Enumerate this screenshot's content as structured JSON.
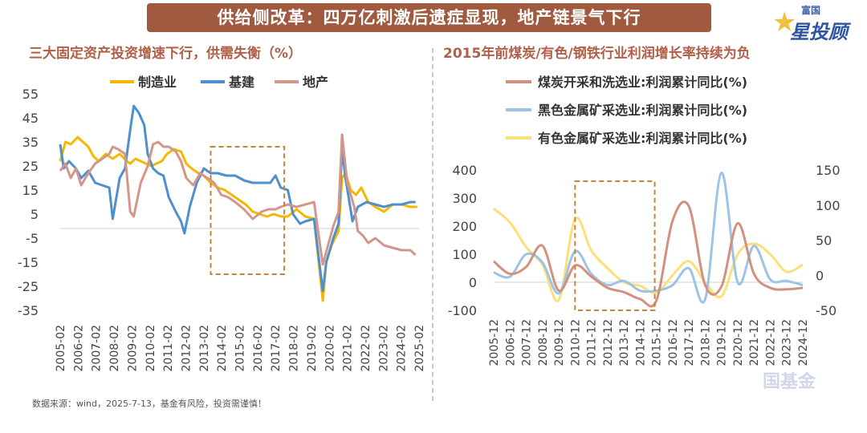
{
  "banner": {
    "title": "供给侧改革：四万亿刺激后遗症显现，地产链景气下行"
  },
  "logo": {
    "top": "富国",
    "main": "星投顾"
  },
  "watermark": "国基金",
  "footer": {
    "text": "数据来源：wind，2025-7-13，基金有风险，投资需谨慎！"
  },
  "colors": {
    "manufacturing": "#f5b800",
    "infrastructure": "#4f8fcc",
    "realestate": "#d4958a",
    "coal": "#d4907f",
    "ferrous": "#9ec3e4",
    "nonferrous": "#fbe07a",
    "highlight": "#c8823c"
  },
  "chart_data": [
    {
      "type": "line",
      "title": "三大固定资产投资增速下行，供需失衡（%）",
      "y_ticks": [
        "55",
        "45",
        "35",
        "25",
        "15",
        "5",
        "-5",
        "-15",
        "-25",
        "-35"
      ],
      "ylim": [
        -35,
        55
      ],
      "x_ticks": [
        "2005-02",
        "2006-02",
        "2007-02",
        "2008-02",
        "2009-02",
        "2010-02",
        "2011-02",
        "2012-02",
        "2013-02",
        "2014-02",
        "2015-02",
        "2016-02",
        "2017-02",
        "2018-02",
        "2019-02",
        "2020-02",
        "2021-02",
        "2022-02",
        "2023-02",
        "2024-02",
        "2025-02"
      ],
      "xlim": [
        2005.0,
        2025.5
      ],
      "highlight_box": {
        "x": [
          2013.6,
          2017.8
        ],
        "y": [
          -20,
          33
        ]
      },
      "series": [
        {
          "name": "制造业",
          "color_key": "manufacturing",
          "points": [
            [
              2005.0,
              27
            ],
            [
              2005.3,
              35
            ],
            [
              2005.6,
              34
            ],
            [
              2006.0,
              37
            ],
            [
              2006.3,
              35
            ],
            [
              2006.6,
              33
            ],
            [
              2006.9,
              29
            ],
            [
              2007.2,
              27
            ],
            [
              2007.6,
              30
            ],
            [
              2008.0,
              28
            ],
            [
              2008.4,
              30
            ],
            [
              2008.8,
              27
            ],
            [
              2009.0,
              26
            ],
            [
              2009.3,
              28
            ],
            [
              2009.6,
              27
            ],
            [
              2009.9,
              26
            ],
            [
              2010.2,
              25
            ],
            [
              2010.5,
              26
            ],
            [
              2010.8,
              27
            ],
            [
              2011.1,
              30
            ],
            [
              2011.5,
              32
            ],
            [
              2011.9,
              31
            ],
            [
              2012.2,
              26
            ],
            [
              2012.5,
              24
            ],
            [
              2012.9,
              22
            ],
            [
              2013.2,
              21
            ],
            [
              2013.6,
              18
            ],
            [
              2014.0,
              16
            ],
            [
              2014.4,
              15
            ],
            [
              2014.8,
              13
            ],
            [
              2015.2,
              11
            ],
            [
              2015.6,
              9
            ],
            [
              2016.0,
              6
            ],
            [
              2016.4,
              5
            ],
            [
              2016.8,
              4
            ],
            [
              2017.2,
              5
            ],
            [
              2017.6,
              4
            ],
            [
              2018.0,
              4
            ],
            [
              2018.5,
              7
            ],
            [
              2019.0,
              4
            ],
            [
              2019.5,
              3
            ],
            [
              2020.0,
              -31
            ],
            [
              2020.2,
              -15
            ],
            [
              2020.5,
              -8
            ],
            [
              2020.9,
              -2
            ],
            [
              2021.1,
              20
            ],
            [
              2021.3,
              22
            ],
            [
              2021.6,
              15
            ],
            [
              2021.9,
              13
            ],
            [
              2022.2,
              16
            ],
            [
              2022.6,
              10
            ],
            [
              2023.0,
              8
            ],
            [
              2023.5,
              6
            ],
            [
              2024.0,
              9
            ],
            [
              2024.5,
              9
            ],
            [
              2025.0,
              8
            ],
            [
              2025.4,
              8
            ]
          ]
        },
        {
          "name": "基建",
          "color_key": "infrastructure",
          "points": [
            [
              2005.0,
              34
            ],
            [
              2005.2,
              24
            ],
            [
              2005.5,
              27
            ],
            [
              2005.9,
              24
            ],
            [
              2006.2,
              20
            ],
            [
              2006.6,
              23
            ],
            [
              2007.0,
              18
            ],
            [
              2007.4,
              17
            ],
            [
              2007.8,
              16
            ],
            [
              2008.0,
              3
            ],
            [
              2008.4,
              20
            ],
            [
              2008.7,
              24
            ],
            [
              2009.0,
              40
            ],
            [
              2009.2,
              50
            ],
            [
              2009.5,
              47
            ],
            [
              2009.8,
              42
            ],
            [
              2010.0,
              30
            ],
            [
              2010.3,
              24
            ],
            [
              2010.6,
              22
            ],
            [
              2010.9,
              21
            ],
            [
              2011.2,
              12
            ],
            [
              2011.6,
              6
            ],
            [
              2011.9,
              2
            ],
            [
              2012.1,
              -3
            ],
            [
              2012.4,
              8
            ],
            [
              2012.8,
              18
            ],
            [
              2013.2,
              24
            ],
            [
              2013.6,
              22
            ],
            [
              2014.0,
              22
            ],
            [
              2014.5,
              21
            ],
            [
              2015.0,
              21
            ],
            [
              2015.5,
              19
            ],
            [
              2016.0,
              18
            ],
            [
              2016.5,
              18
            ],
            [
              2017.0,
              18
            ],
            [
              2017.3,
              21
            ],
            [
              2017.6,
              16
            ],
            [
              2018.0,
              15
            ],
            [
              2018.3,
              5
            ],
            [
              2018.7,
              1
            ],
            [
              2019.0,
              2
            ],
            [
              2019.5,
              3
            ],
            [
              2020.0,
              -27
            ],
            [
              2020.2,
              -15
            ],
            [
              2020.6,
              -5
            ],
            [
              2020.9,
              1
            ],
            [
              2021.1,
              32
            ],
            [
              2021.3,
              20
            ],
            [
              2021.7,
              2
            ],
            [
              2022.0,
              8
            ],
            [
              2022.5,
              10
            ],
            [
              2023.0,
              9
            ],
            [
              2023.5,
              8
            ],
            [
              2024.0,
              9
            ],
            [
              2024.5,
              9
            ],
            [
              2025.0,
              10
            ],
            [
              2025.3,
              10
            ]
          ]
        },
        {
          "name": "地产",
          "color_key": "realestate",
          "points": [
            [
              2005.0,
              23
            ],
            [
              2005.3,
              26
            ],
            [
              2005.6,
              20
            ],
            [
              2005.9,
              24
            ],
            [
              2006.2,
              17
            ],
            [
              2006.6,
              22
            ],
            [
              2007.0,
              26
            ],
            [
              2007.4,
              28
            ],
            [
              2007.8,
              30
            ],
            [
              2008.0,
              33
            ],
            [
              2008.3,
              32
            ],
            [
              2008.7,
              30
            ],
            [
              2009.0,
              6
            ],
            [
              2009.2,
              4
            ],
            [
              2009.6,
              18
            ],
            [
              2010.0,
              25
            ],
            [
              2010.3,
              34
            ],
            [
              2010.6,
              35
            ],
            [
              2010.9,
              33
            ],
            [
              2011.2,
              33
            ],
            [
              2011.6,
              31
            ],
            [
              2011.9,
              27
            ],
            [
              2012.2,
              20
            ],
            [
              2012.6,
              17
            ],
            [
              2013.0,
              22
            ],
            [
              2013.4,
              20
            ],
            [
              2013.8,
              18
            ],
            [
              2014.2,
              13
            ],
            [
              2014.6,
              12
            ],
            [
              2015.0,
              10
            ],
            [
              2015.5,
              7
            ],
            [
              2016.0,
              3
            ],
            [
              2016.5,
              6
            ],
            [
              2016.9,
              7
            ],
            [
              2017.3,
              7
            ],
            [
              2017.6,
              8
            ],
            [
              2018.0,
              9
            ],
            [
              2018.5,
              8
            ],
            [
              2019.0,
              9
            ],
            [
              2019.5,
              10
            ],
            [
              2020.0,
              -16
            ],
            [
              2020.3,
              -8
            ],
            [
              2020.6,
              0
            ],
            [
              2020.9,
              6
            ],
            [
              2021.1,
              38
            ],
            [
              2021.4,
              18
            ],
            [
              2021.8,
              8
            ],
            [
              2022.0,
              -2
            ],
            [
              2022.3,
              -4
            ],
            [
              2022.6,
              -7
            ],
            [
              2023.0,
              -5
            ],
            [
              2023.5,
              -8
            ],
            [
              2024.0,
              -9
            ],
            [
              2024.5,
              -10
            ],
            [
              2025.0,
              -10
            ],
            [
              2025.3,
              -12
            ]
          ]
        }
      ]
    },
    {
      "type": "line",
      "title": "2015年前煤炭/有色/钢铁行业利润增长率持续为负",
      "x_ticks": [
        "2005-12",
        "2006-12",
        "2007-12",
        "2008-12",
        "2009-12",
        "2010-12",
        "2011-12",
        "2012-12",
        "2013-12",
        "2014-12",
        "2015-12",
        "2016-12",
        "2017-12",
        "2018-12",
        "2019-12",
        "2020-12",
        "2021-12",
        "2022-12",
        "2023-12",
        "2024-12"
      ],
      "y_left_ticks": [
        "400",
        "300",
        "200",
        "100",
        "0",
        "-100"
      ],
      "y_right_ticks": [
        "150",
        "100",
        "50",
        "0",
        "-50"
      ],
      "ylim_left": [
        -100,
        400
      ],
      "ylim_right": [
        -50,
        150
      ],
      "highlight_box": {
        "x": [
          2010.0,
          2014.9
        ],
        "y_left": [
          -100,
          360
        ]
      },
      "series": [
        {
          "name": "煤炭开采和洗选业:利润累计同比(%)",
          "color_key": "coal",
          "axis": "left",
          "values": [
            75,
            30,
            55,
            130,
            -30,
            60,
            20,
            -20,
            -35,
            -60,
            -65,
            220,
            270,
            -10,
            -15,
            210,
            30,
            -20,
            -25,
            -20
          ]
        },
        {
          "name": "黑色金属矿采选业:利润累计同比(%)",
          "color_key": "ferrous",
          "axis": "left",
          "values": [
            35,
            20,
            100,
            70,
            -40,
            110,
            30,
            -10,
            5,
            -30,
            -30,
            -10,
            50,
            -60,
            390,
            0,
            130,
            10,
            5,
            -10
          ]
        },
        {
          "name": "有色金属矿采选业:利润累计同比(%)",
          "color_key": "nonferrous",
          "axis": "right",
          "values": [
            95,
            75,
            40,
            15,
            -35,
            80,
            35,
            10,
            -10,
            -15,
            -25,
            0,
            20,
            -10,
            -30,
            30,
            45,
            30,
            5,
            15
          ]
        }
      ]
    }
  ]
}
